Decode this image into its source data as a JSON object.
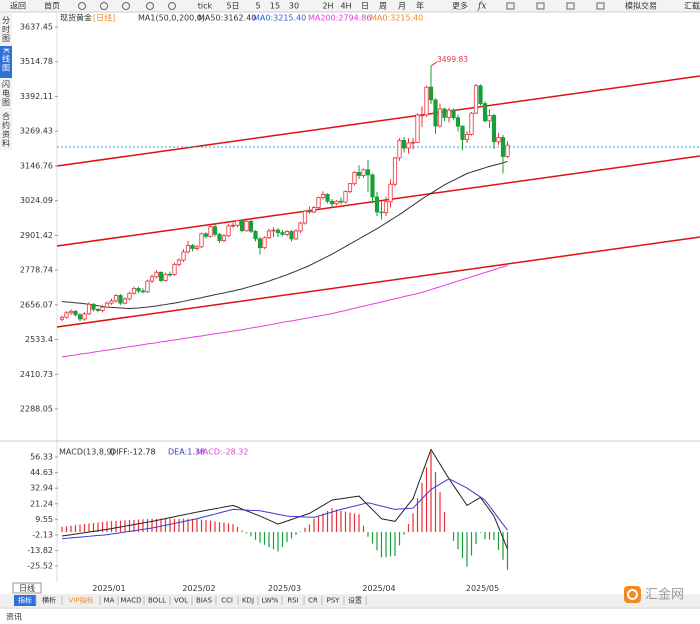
{
  "toolbar": {
    "back": "返回",
    "home": "首页",
    "periods": [
      "tick",
      "5日",
      "5",
      "15",
      "30",
      "2H",
      "4H",
      "日",
      "周",
      "月",
      "年"
    ],
    "more": "更多",
    "fx": "fx",
    "trade": "模拟交易",
    "tail": "汇截"
  },
  "sidebar": [
    "分时图",
    "K线图",
    "闪电图",
    "合约资料"
  ],
  "chart_data": [
    {
      "type": "candlestick",
      "title": "现货黄金",
      "period": "[日线]",
      "indicator": "MA1(50,0,200,0)",
      "up_color": "#e8303a",
      "down_color": "#1a9e3a",
      "ylim": [
        2213.9,
        3662.2
      ],
      "yticks": [
        3637.45,
        3514.78,
        3392.11,
        3269.43,
        3146.76,
        3024.09,
        2901.42,
        2778.74,
        2656.07,
        2533.4,
        2410.73,
        2288.05
      ],
      "open": [
        2605,
        2612,
        2628,
        2633,
        2621,
        2606,
        2624,
        2658,
        2640,
        2636,
        2648,
        2662,
        2670,
        2689,
        2662,
        2677,
        2697,
        2714,
        2705,
        2702,
        2740,
        2755,
        2771,
        2742,
        2764,
        2763,
        2798,
        2814,
        2843,
        2866,
        2855,
        2861,
        2907,
        2898,
        2932,
        2905,
        2883,
        2900,
        2935,
        2937,
        2954,
        2918,
        2951,
        2916,
        2889,
        2858,
        2893,
        2917,
        2920,
        2911,
        2905,
        2915,
        2889,
        2917,
        2945,
        2987,
        2984,
        3000,
        3035,
        3046,
        3022,
        3013,
        3022,
        3019,
        3056,
        3084,
        3124,
        3113,
        3133,
        3115,
        3037,
        2984,
        2982,
        3020,
        3082,
        3175,
        3237,
        3210,
        3228,
        3230,
        3327,
        3327,
        3425,
        3380,
        3288,
        3348,
        3318,
        3344,
        3317,
        3287,
        3240,
        3258,
        3333,
        3430,
        3367,
        3306,
        3325,
        3232,
        3247,
        3180
      ],
      "high": [
        2618,
        2634,
        2640,
        2638,
        2626,
        2630,
        2665,
        2662,
        2645,
        2654,
        2668,
        2678,
        2694,
        2694,
        2682,
        2702,
        2721,
        2720,
        2714,
        2745,
        2763,
        2778,
        2774,
        2770,
        2773,
        2805,
        2820,
        2853,
        2882,
        2871,
        2867,
        2911,
        2912,
        2942,
        2940,
        2910,
        2906,
        2942,
        2947,
        2956,
        2958,
        2955,
        2956,
        2920,
        2895,
        2898,
        2925,
        2930,
        2928,
        2920,
        2920,
        2920,
        2923,
        2950,
        2990,
        3004,
        3005,
        3038,
        3057,
        3050,
        3030,
        3026,
        3035,
        3060,
        3087,
        3128,
        3149,
        3138,
        3167,
        3120,
        3055,
        3022,
        3038,
        3099,
        3178,
        3245,
        3249,
        3245,
        3245,
        3333,
        3357,
        3430,
        3499.83,
        3386,
        3367,
        3352,
        3352,
        3350,
        3328,
        3290,
        3269,
        3337,
        3436,
        3435,
        3375,
        3347,
        3330,
        3264,
        3256,
        3233
      ],
      "low": [
        2598,
        2608,
        2620,
        2615,
        2598,
        2600,
        2620,
        2632,
        2630,
        2630,
        2644,
        2656,
        2664,
        2656,
        2658,
        2672,
        2692,
        2698,
        2696,
        2698,
        2733,
        2750,
        2736,
        2738,
        2756,
        2758,
        2792,
        2808,
        2838,
        2845,
        2848,
        2856,
        2890,
        2894,
        2898,
        2875,
        2877,
        2895,
        2928,
        2930,
        2912,
        2914,
        2910,
        2880,
        2833,
        2853,
        2888,
        2895,
        2895,
        2898,
        2898,
        2880,
        2885,
        2910,
        2940,
        2978,
        2980,
        2995,
        3028,
        3015,
        3000,
        3008,
        3011,
        3015,
        3050,
        3078,
        3100,
        3105,
        3054,
        3015,
        2970,
        2957,
        2970,
        3000,
        3075,
        3165,
        3194,
        3190,
        3205,
        3228,
        3284,
        3320,
        3366,
        3260,
        3282,
        3305,
        3300,
        3310,
        3268,
        3202,
        3228,
        3254,
        3330,
        3360,
        3300,
        3280,
        3207,
        3220,
        3120,
        3175
      ],
      "close": [
        2612,
        2628,
        2633,
        2621,
        2606,
        2624,
        2658,
        2640,
        2636,
        2648,
        2662,
        2670,
        2689,
        2662,
        2677,
        2697,
        2714,
        2705,
        2702,
        2740,
        2755,
        2771,
        2742,
        2764,
        2763,
        2798,
        2814,
        2843,
        2866,
        2855,
        2861,
        2907,
        2898,
        2932,
        2905,
        2883,
        2900,
        2935,
        2937,
        2954,
        2918,
        2951,
        2916,
        2889,
        2858,
        2893,
        2917,
        2920,
        2911,
        2905,
        2915,
        2889,
        2917,
        2945,
        2987,
        2984,
        3000,
        3035,
        3046,
        3022,
        3013,
        3022,
        3019,
        3056,
        3084,
        3124,
        3113,
        3133,
        3115,
        3037,
        2984,
        2982,
        3020,
        3082,
        3175,
        3237,
        3210,
        3228,
        3230,
        3327,
        3327,
        3425,
        3380,
        3288,
        3348,
        3318,
        3344,
        3317,
        3287,
        3240,
        3258,
        3333,
        3430,
        3367,
        3306,
        3325,
        3232,
        3247,
        3180,
        3220
      ],
      "high_label": {
        "value": 3499.83,
        "label": "3499.83",
        "color": "#e8303a"
      },
      "series": [
        {
          "name": "MA50:3162.40",
          "color": "#333333",
          "values": [
            2668,
            2666,
            2665,
            2663,
            2662,
            2660,
            2658,
            2655,
            2653,
            2650,
            2648,
            2647,
            2646,
            2645,
            2644,
            2643,
            2644,
            2645,
            2647,
            2648,
            2650,
            2652,
            2655,
            2657,
            2660,
            2662,
            2665,
            2668,
            2672,
            2675,
            2678,
            2681,
            2685,
            2688,
            2692,
            2695,
            2698,
            2702,
            2705,
            2709,
            2712,
            2717,
            2721,
            2726,
            2730,
            2735,
            2740,
            2746,
            2751,
            2757,
            2762,
            2769,
            2775,
            2782,
            2788,
            2795,
            2803,
            2811,
            2819,
            2827,
            2835,
            2844,
            2853,
            2862,
            2871,
            2880,
            2889,
            2898,
            2907,
            2916,
            2925,
            2935,
            2945,
            2955,
            2965,
            2975,
            2986,
            2997,
            3008,
            3019,
            3030,
            3040,
            3050,
            3060,
            3070,
            3080,
            3088,
            3096,
            3104,
            3112,
            3120,
            3125,
            3130,
            3135,
            3140,
            3145,
            3149,
            3153,
            3158,
            3162.4
          ]
        },
        {
          "name": "MA200:2794.86",
          "color": "#e040e0",
          "values": [
            2472,
            2474,
            2477,
            2479,
            2482,
            2484,
            2486,
            2489,
            2491,
            2494,
            2496,
            2498,
            2501,
            2503,
            2506,
            2508,
            2510,
            2513,
            2515,
            2518,
            2520,
            2522,
            2525,
            2527,
            2530,
            2532,
            2534,
            2537,
            2539,
            2542,
            2544,
            2546,
            2549,
            2551,
            2554,
            2556,
            2558,
            2561,
            2563,
            2566,
            2568,
            2571,
            2574,
            2577,
            2579,
            2582,
            2585,
            2588,
            2591,
            2594,
            2597,
            2599,
            2602,
            2605,
            2608,
            2611,
            2614,
            2616,
            2619,
            2622,
            2625,
            2629,
            2633,
            2636,
            2640,
            2644,
            2648,
            2651,
            2655,
            2659,
            2662,
            2666,
            2670,
            2674,
            2677,
            2681,
            2685,
            2689,
            2692,
            2696,
            2700,
            2705,
            2710,
            2715,
            2720,
            2725,
            2730,
            2735,
            2740,
            2745,
            2750,
            2755,
            2760,
            2765,
            2770,
            2775,
            2780,
            2785,
            2790,
            2794.86
          ]
        }
      ],
      "indicator_labels": [
        {
          "text": "MA0:3215.40",
          "color": "#2a62d8"
        },
        {
          "text": "MA0:3215.40",
          "color": "#f08a24"
        }
      ]
    },
    {
      "type": "macd",
      "title": "MACD(13,8,9)",
      "ylim": [
        -37.5,
        61.6
      ],
      "yticks": [
        56.33,
        44.63,
        32.94,
        21.24,
        9.55,
        -2.13,
        -13.82,
        -25.52
      ],
      "categories": [
        null,
        null,
        null,
        null,
        null,
        null,
        "2025/01",
        null,
        null,
        null,
        null,
        null,
        null,
        null,
        null,
        null,
        null,
        null,
        null,
        null,
        null,
        null,
        null,
        null,
        null,
        null,
        "2025/02",
        null,
        null,
        null,
        null,
        null,
        null,
        null,
        null,
        null,
        null,
        null,
        null,
        null,
        null,
        null,
        null,
        null,
        null,
        "2025/03",
        null,
        null,
        null,
        null,
        null,
        null,
        null,
        null,
        null,
        null,
        null,
        null,
        null,
        null,
        null,
        null,
        null,
        null,
        null,
        null,
        "2025/04",
        null,
        null,
        null,
        null,
        null,
        null,
        null,
        null,
        null,
        null,
        null,
        null,
        null,
        null,
        null,
        null,
        null,
        null,
        null,
        null,
        null,
        null,
        "2025/05",
        null,
        null,
        null,
        null,
        null,
        null,
        null,
        null,
        null,
        null
      ],
      "up_color": "#e8303a",
      "down_color": "#1a9e3a",
      "series": [
        {
          "name": "DIFF:-12.78",
          "color": "#222222",
          "values": [
            -3,
            -2.5,
            -2,
            -1.5,
            -1,
            -0.5,
            0,
            0.5,
            1,
            1.5,
            2,
            2.6,
            3.2,
            3.8,
            4.4,
            5,
            5.6,
            6.2,
            6.8,
            7.4,
            8,
            8.7,
            9.4,
            10.1,
            10.8,
            11.5,
            12.2,
            12.9,
            13.6,
            14.3,
            15,
            15.6,
            16.3,
            16.9,
            17.5,
            18.1,
            18.8,
            19.4,
            20,
            18.7,
            17.3,
            16,
            14.7,
            13.3,
            12,
            10.5,
            9,
            7.5,
            6,
            7.1,
            8.3,
            9.4,
            10.6,
            11.7,
            12.9,
            14,
            16,
            18,
            20,
            22,
            24,
            24.5,
            25,
            25.5,
            26,
            26.5,
            27,
            23.6,
            20.2,
            16.8,
            13.4,
            10,
            9.3,
            8.7,
            8,
            12.3,
            16.5,
            20.8,
            25,
            34.3,
            43.5,
            52.8,
            62,
            56.5,
            51,
            45.5,
            40,
            35,
            30,
            25,
            20,
            22,
            24,
            26,
            21.3,
            16.7,
            12,
            3.7,
            -4.5,
            -12.78
          ]
        },
        {
          "name": "DEA:1.38",
          "color": "#3a3ad0",
          "values": [
            -5,
            -4.7,
            -4.4,
            -4.1,
            -3.8,
            -3.5,
            -3.2,
            -2.9,
            -2.6,
            -2.3,
            -2,
            -1.5,
            -1,
            -0.5,
            0,
            0.5,
            1,
            1.5,
            2,
            2.5,
            3,
            3.7,
            4.4,
            5.1,
            5.8,
            6.5,
            7.2,
            7.9,
            8.6,
            9.3,
            10,
            10.9,
            11.8,
            12.6,
            13.5,
            14.4,
            15.3,
            16.1,
            17,
            16.8,
            16.7,
            16.5,
            16.3,
            16.2,
            16,
            15.3,
            14.7,
            14,
            13.3,
            12.7,
            12,
            11.8,
            11.7,
            11.5,
            11.3,
            11.2,
            11,
            12,
            13,
            14,
            15,
            16,
            17,
            17.8,
            18.7,
            19.5,
            20.3,
            21.2,
            22,
            21.2,
            20.3,
            19.5,
            18.7,
            17.8,
            17,
            17.3,
            17.5,
            17.8,
            18,
            21.5,
            25,
            28.5,
            32,
            34,
            36,
            38,
            40,
            38.3,
            36.5,
            34.8,
            33,
            30.8,
            28.5,
            26.3,
            24,
            19.5,
            15,
            10.4,
            5.9,
            1.38
          ]
        },
        {
          "name": "MACD:-28.32",
          "color": "#e040e0",
          "values": [
            4,
            4.4,
            4.8,
            5.2,
            5.6,
            6,
            6.4,
            6.8,
            7.2,
            7.6,
            8,
            8.2,
            8.4,
            8.6,
            8.8,
            9,
            9.2,
            9.4,
            9.6,
            9.8,
            10,
            10,
            10,
            10,
            10,
            10,
            10,
            10,
            10,
            10,
            10,
            9.4,
            9,
            8.6,
            8,
            7.4,
            7,
            6.6,
            6,
            3.8,
            1.2,
            -1,
            -3.2,
            -5.8,
            -8,
            -9.6,
            -11.4,
            -13,
            -14.6,
            -11.2,
            -7.4,
            -4.8,
            -2.2,
            0.4,
            3.2,
            5.6,
            10,
            12,
            14,
            16,
            18,
            17,
            16,
            15.4,
            14.6,
            14,
            13.4,
            4.8,
            -3.6,
            -8.8,
            -13.8,
            -19,
            -18.8,
            -18.2,
            -18,
            -10,
            -2,
            6,
            14,
            25.6,
            37,
            48.6,
            60,
            45,
            30,
            15,
            0,
            -6.6,
            -13,
            -19.6,
            -26,
            -17.6,
            -9,
            -0.6,
            -5.4,
            -5.6,
            -6,
            -13.4,
            -20.8,
            -28.32
          ]
        }
      ]
    }
  ],
  "period_box": "日线",
  "tabs": [
    "指标",
    "横析",
    "VIP指标",
    "MA",
    "MACD",
    "BOLL",
    "VOL",
    "BIAS",
    "CCI",
    "KDJ",
    "LW%",
    "RSI",
    "CR",
    "PSY",
    "设置"
  ],
  "footer": "资讯",
  "logo": "汇金网"
}
